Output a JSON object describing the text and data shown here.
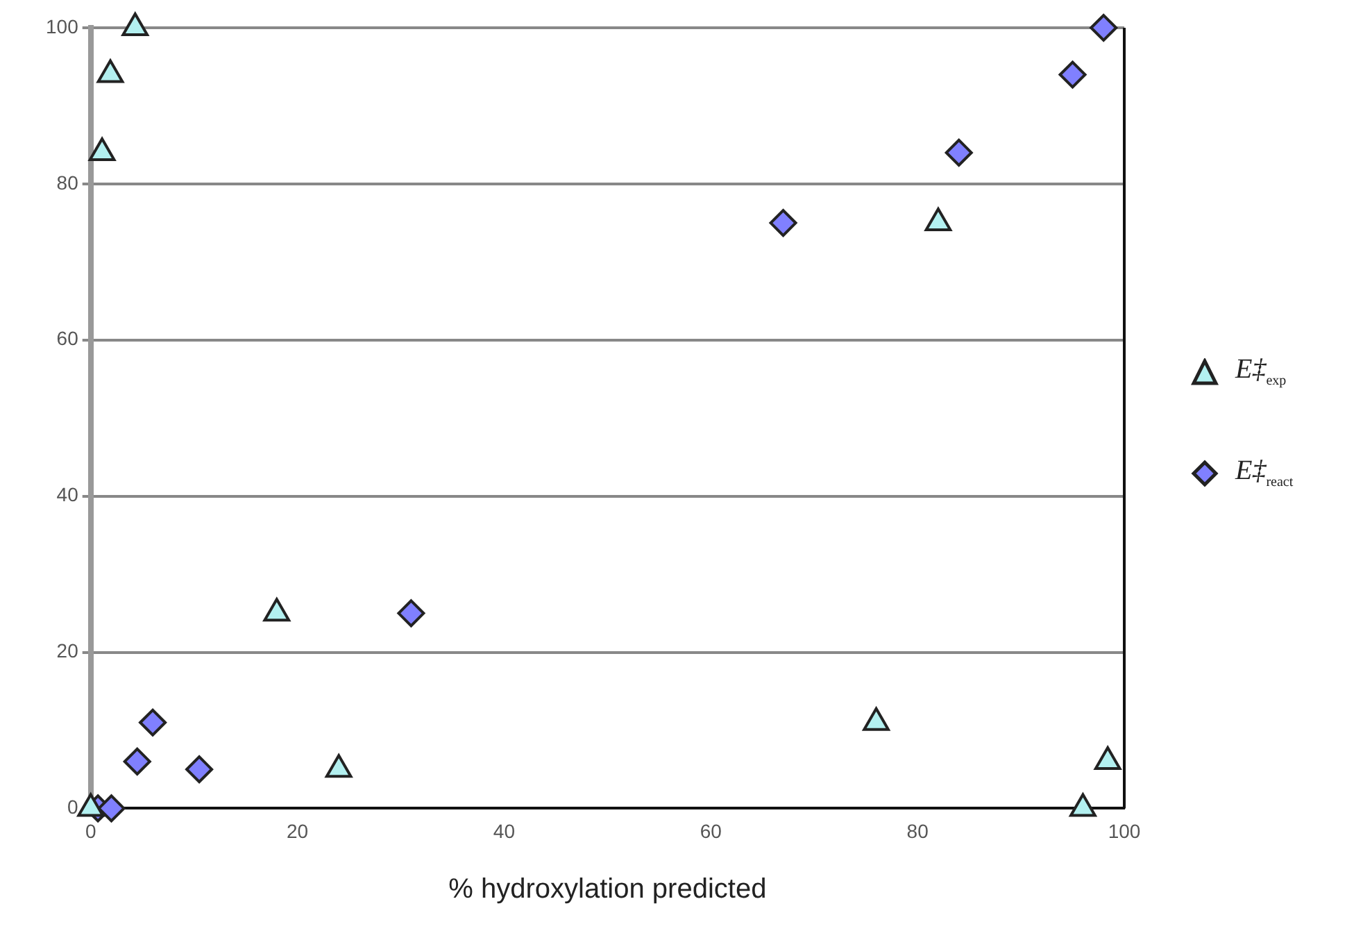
{
  "chart_data": {
    "type": "scatter",
    "xlabel": "% hydroxylation predicted",
    "xlim": [
      0,
      100
    ],
    "xticks": [
      0,
      20,
      40,
      60,
      80,
      100
    ],
    "ylim": [
      0,
      100
    ],
    "yticks": [
      0,
      20,
      40,
      60,
      80,
      100
    ],
    "grid": "y",
    "legend": "right",
    "series": [
      {
        "name": "E‡$_{exp}$",
        "color": "#b3f0f0",
        "marker": "triangle",
        "x": [
          0,
          1.1,
          1.9,
          4.3,
          18,
          24,
          76,
          82,
          96,
          98.4
        ],
        "values": [
          0,
          84,
          94,
          100,
          25,
          5,
          11,
          75,
          0,
          6
        ]
      },
      {
        "name": "E‡$_{react}$",
        "color": "#8080ff",
        "marker": "diamond",
        "x": [
          0.7,
          2,
          4.5,
          6,
          10.5,
          31,
          67,
          84,
          95,
          98
        ],
        "values": [
          0,
          0,
          6,
          11,
          5,
          25,
          75,
          84,
          94,
          100
        ]
      }
    ]
  }
}
